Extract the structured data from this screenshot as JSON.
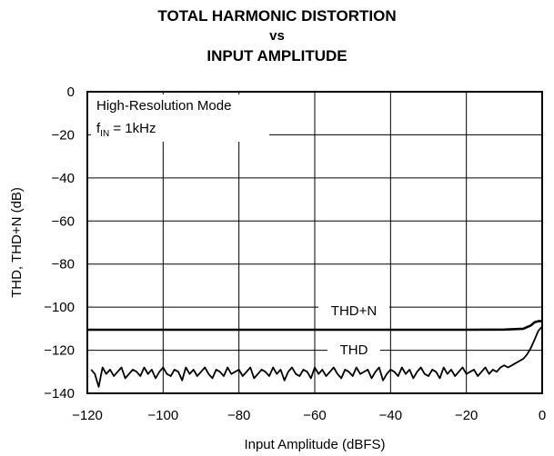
{
  "chart_data": {
    "type": "line",
    "title_lines": [
      "TOTAL HARMONIC DISTORTION",
      "vs",
      "INPUT AMPLITUDE"
    ],
    "xlabel": "Input Amplitude (dBFS)",
    "ylabel": "THD, THD+N (dB)",
    "xlim": [
      -120,
      0
    ],
    "ylim": [
      -140,
      0
    ],
    "xticks": [
      "−120",
      "−100",
      "−80",
      "−60",
      "−40",
      "−20",
      "0"
    ],
    "yticks": [
      "0",
      "−20",
      "−40",
      "−60",
      "−80",
      "−100",
      "−120",
      "−140"
    ],
    "grid": true,
    "annotations": {
      "mode": "High-Resolution Mode",
      "fin_prefix": "f",
      "fin_sub": "IN",
      "fin_value": " = 1kHz"
    },
    "series": [
      {
        "name": "THD+N",
        "x": [
          -120,
          -100,
          -80,
          -60,
          -40,
          -20,
          -10,
          -5,
          -3,
          -2,
          -1,
          0
        ],
        "y": [
          -110.5,
          -110.5,
          -110.5,
          -110.5,
          -110.5,
          -110.5,
          -110.4,
          -110,
          -108.5,
          -107,
          -106.5,
          -106.5
        ]
      },
      {
        "name": "THD",
        "x": [
          -119,
          -118,
          -117,
          -116,
          -115,
          -114,
          -113,
          -112,
          -111,
          -110,
          -109,
          -108,
          -107,
          -106,
          -105,
          -104,
          -103,
          -102,
          -101,
          -100,
          -99,
          -98,
          -97,
          -96,
          -95,
          -94,
          -93,
          -92,
          -91,
          -90,
          -89,
          -88,
          -87,
          -86,
          -85,
          -84,
          -83,
          -82,
          -81,
          -80,
          -79,
          -78,
          -77,
          -76,
          -75,
          -74,
          -73,
          -72,
          -71,
          -70,
          -69,
          -68,
          -67,
          -66,
          -65,
          -64,
          -63,
          -62,
          -61,
          -60,
          -59,
          -58,
          -57,
          -56,
          -55,
          -54,
          -53,
          -52,
          -51,
          -50,
          -49,
          -48,
          -47,
          -46,
          -45,
          -44,
          -43,
          -42,
          -41,
          -40,
          -39,
          -38,
          -37,
          -36,
          -35,
          -34,
          -33,
          -32,
          -31,
          -30,
          -29,
          -28,
          -27,
          -26,
          -25,
          -24,
          -23,
          -22,
          -21,
          -20,
          -19,
          -18,
          -17,
          -16,
          -15,
          -14,
          -13,
          -12,
          -11,
          -10,
          -9,
          -8,
          -7,
          -6,
          -5,
          -4,
          -3,
          -2,
          -1,
          0
        ],
        "y": [
          -129,
          -131,
          -137,
          -128,
          -131,
          -129,
          -132,
          -130,
          -128,
          -133,
          -131,
          -129,
          -130,
          -132,
          -128,
          -131,
          -129,
          -133,
          -130,
          -128,
          -131,
          -132,
          -129,
          -130,
          -134,
          -128,
          -131,
          -129,
          -132,
          -130,
          -128,
          -131,
          -133,
          -129,
          -130,
          -132,
          -128,
          -131,
          -130,
          -129,
          -132,
          -130,
          -128,
          -133,
          -131,
          -129,
          -130,
          -132,
          -128,
          -131,
          -129,
          -134,
          -130,
          -128,
          -131,
          -132,
          -129,
          -130,
          -133,
          -128,
          -131,
          -129,
          -132,
          -130,
          -128,
          -131,
          -133,
          -129,
          -130,
          -132,
          -128,
          -131,
          -130,
          -129,
          -133,
          -130,
          -128,
          -134,
          -131,
          -129,
          -130,
          -132,
          -128,
          -131,
          -129,
          -133,
          -130,
          -128,
          -131,
          -132,
          -129,
          -130,
          -133,
          -128,
          -131,
          -129,
          -132,
          -130,
          -128,
          -131,
          -130,
          -129,
          -132,
          -130,
          -128,
          -131,
          -129,
          -130,
          -128,
          -127,
          -128,
          -127,
          -126,
          -125,
          -124,
          -122,
          -119,
          -115,
          -111,
          -109
        ]
      }
    ]
  }
}
